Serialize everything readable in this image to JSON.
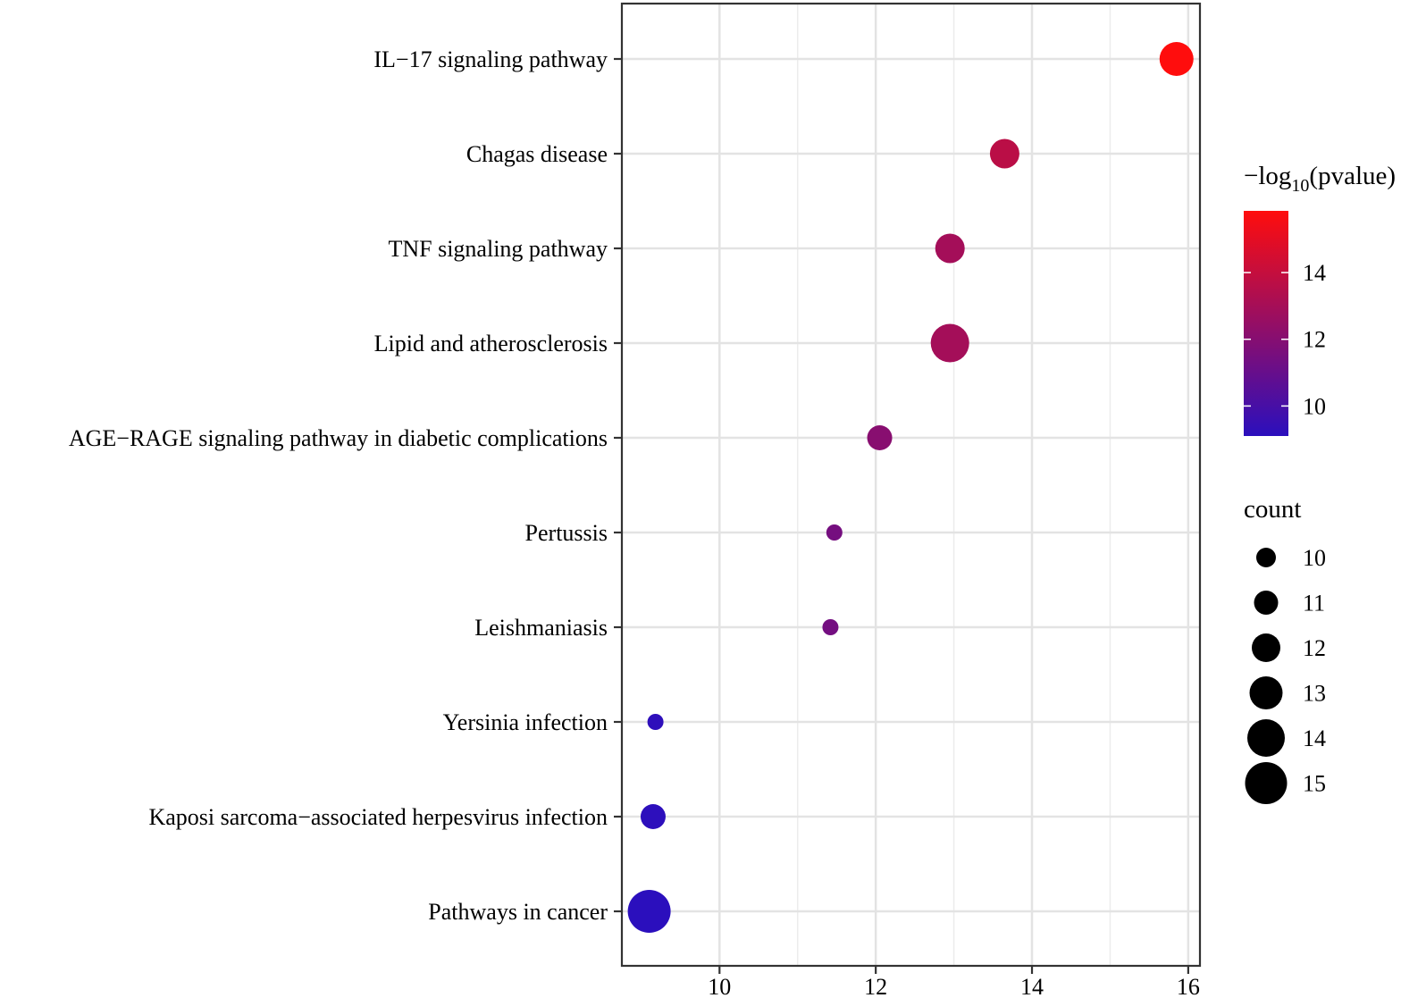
{
  "chart_data": {
    "type": "scatter",
    "title": "",
    "xlabel": "",
    "ylabel": "",
    "xlim": [
      8.75,
      16.15
    ],
    "x_ticks": [
      10,
      12,
      14,
      16
    ],
    "x_tick_labels": [
      "10",
      "12",
      "14",
      "16"
    ],
    "grid": true,
    "categories": [
      "IL−17 signaling pathway",
      "Chagas disease",
      "TNF signaling pathway",
      "Lipid and atherosclerosis",
      "AGE−RAGE signaling pathway in diabetic complications",
      "Pertussis",
      "Leishmaniasis",
      "Yersinia infection",
      "Kaposi sarcoma−associated herpesvirus infection",
      "Pathways in cancer"
    ],
    "points": [
      {
        "pathway": "IL−17 signaling pathway",
        "x": 15.85,
        "count": 13,
        "neglog10p": 15.85
      },
      {
        "pathway": "Chagas disease",
        "x": 13.65,
        "count": 12,
        "neglog10p": 13.65
      },
      {
        "pathway": "TNF signaling pathway",
        "x": 12.95,
        "count": 12,
        "neglog10p": 12.95
      },
      {
        "pathway": "Lipid and atherosclerosis",
        "x": 12.95,
        "count": 14,
        "neglog10p": 12.95
      },
      {
        "pathway": "AGE−RAGE signaling pathway in diabetic complications",
        "x": 12.05,
        "count": 11,
        "neglog10p": 12.05
      },
      {
        "pathway": "Pertussis",
        "x": 11.47,
        "count": 9,
        "neglog10p": 11.47
      },
      {
        "pathway": "Leishmaniasis",
        "x": 11.42,
        "count": 9,
        "neglog10p": 11.42
      },
      {
        "pathway": "Yersinia infection",
        "x": 9.18,
        "count": 9,
        "neglog10p": 9.18
      },
      {
        "pathway": "Kaposi sarcoma−associated herpesvirus infection",
        "x": 9.15,
        "count": 11,
        "neglog10p": 9.15
      },
      {
        "pathway": "Pathways in cancer",
        "x": 9.1,
        "count": 15,
        "neglog10p": 9.1
      }
    ],
    "color_legend": {
      "title_prefix": "−log",
      "title_subscript": "10",
      "title_suffix": "(pvalue)",
      "range": [
        9.1,
        15.85
      ],
      "ticks": [
        10,
        12,
        14
      ],
      "tick_labels": [
        "10",
        "12",
        "14"
      ],
      "low_color": "#2b0fbd",
      "high_color": "#ff0d0d"
    },
    "size_legend": {
      "title": "count",
      "values": [
        10,
        11,
        12,
        13,
        14,
        15
      ],
      "labels": [
        "10",
        "11",
        "12",
        "13",
        "14",
        "15"
      ]
    },
    "legend_position": "right"
  }
}
